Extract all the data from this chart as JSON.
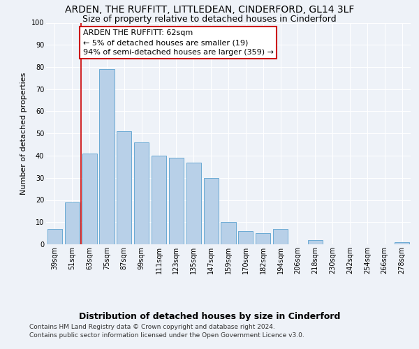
{
  "title": "ARDEN, THE RUFFITT, LITTLEDEAN, CINDERFORD, GL14 3LF",
  "subtitle": "Size of property relative to detached houses in Cinderford",
  "xlabel": "Distribution of detached houses by size in Cinderford",
  "ylabel": "Number of detached properties",
  "categories": [
    "39sqm",
    "51sqm",
    "63sqm",
    "75sqm",
    "87sqm",
    "99sqm",
    "111sqm",
    "123sqm",
    "135sqm",
    "147sqm",
    "159sqm",
    "170sqm",
    "182sqm",
    "194sqm",
    "206sqm",
    "218sqm",
    "230sqm",
    "242sqm",
    "254sqm",
    "266sqm",
    "278sqm"
  ],
  "values": [
    7,
    19,
    41,
    79,
    51,
    46,
    40,
    39,
    37,
    30,
    10,
    6,
    5,
    7,
    0,
    2,
    0,
    0,
    0,
    0,
    1
  ],
  "bar_color": "#b8d0e8",
  "bar_edge_color": "#6aaad4",
  "ylim": [
    0,
    100
  ],
  "yticks": [
    0,
    10,
    20,
    30,
    40,
    50,
    60,
    70,
    80,
    90,
    100
  ],
  "marker_line_color": "#cc0000",
  "annotation_line1": "ARDEN THE RUFFITT: 62sqm",
  "annotation_line2": "← 5% of detached houses are smaller (19)",
  "annotation_line3": "94% of semi-detached houses are larger (359) →",
  "annotation_box_color": "#cc0000",
  "footer_line1": "Contains HM Land Registry data © Crown copyright and database right 2024.",
  "footer_line2": "Contains public sector information licensed under the Open Government Licence v3.0.",
  "background_color": "#eef2f8",
  "grid_color": "#ffffff",
  "title_fontsize": 10,
  "subtitle_fontsize": 9,
  "xlabel_fontsize": 9,
  "ylabel_fontsize": 8,
  "tick_fontsize": 7,
  "annotation_fontsize": 8,
  "footer_fontsize": 6.5
}
